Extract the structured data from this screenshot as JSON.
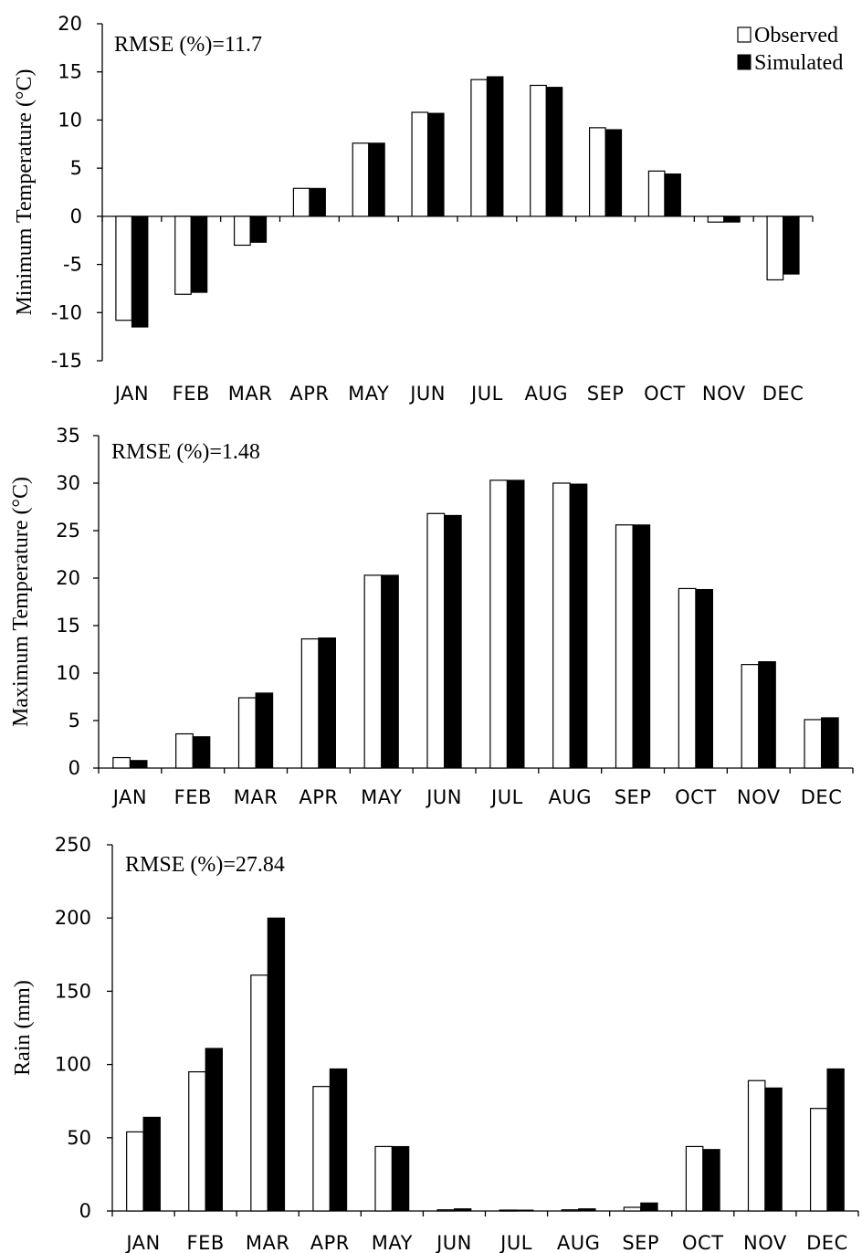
{
  "chart_data": [
    {
      "type": "bar",
      "ylabel": "Minimum Temperature (°C)",
      "annotation": "RMSE (%)=11.7",
      "ylim": [
        -15,
        20
      ],
      "yticks": [
        20,
        15,
        10,
        5,
        0,
        -5,
        -10,
        -15
      ],
      "categories": [
        "JAN",
        "FEB",
        "MAR",
        "APR",
        "MAY",
        "JUN",
        "JUL",
        "AUG",
        "SEP",
        "OCT",
        "NOV",
        "DEC"
      ],
      "series": [
        {
          "name": "Observed",
          "color": "#ffffff",
          "values": [
            -10.8,
            -8.1,
            -3.0,
            2.9,
            7.6,
            10.8,
            14.2,
            13.6,
            9.2,
            4.7,
            -0.6,
            -6.6
          ]
        },
        {
          "name": "Simulated",
          "color": "#000000",
          "values": [
            -11.5,
            -7.9,
            -2.7,
            2.9,
            7.6,
            10.7,
            14.5,
            13.4,
            9.0,
            4.4,
            -0.6,
            -6.0
          ]
        }
      ],
      "legend": {
        "position": "top-right",
        "items": [
          "Observed",
          "Simulated"
        ]
      },
      "grid": false
    },
    {
      "type": "bar",
      "ylabel": "Maximum Temperature (°C)",
      "annotation": "RMSE (%)=1.48",
      "ylim": [
        0,
        35
      ],
      "yticks": [
        35,
        30,
        25,
        20,
        15,
        10,
        5,
        0
      ],
      "categories": [
        "JAN",
        "FEB",
        "MAR",
        "APR",
        "MAY",
        "JUN",
        "JUL",
        "AUG",
        "SEP",
        "OCT",
        "NOV",
        "DEC"
      ],
      "series": [
        {
          "name": "Observed",
          "color": "#ffffff",
          "values": [
            1.1,
            3.6,
            7.4,
            13.6,
            20.3,
            26.8,
            30.3,
            30.0,
            25.6,
            18.9,
            10.9,
            5.1
          ]
        },
        {
          "name": "Simulated",
          "color": "#000000",
          "values": [
            0.8,
            3.3,
            7.9,
            13.7,
            20.3,
            26.6,
            30.3,
            29.9,
            25.6,
            18.8,
            11.2,
            5.3
          ]
        }
      ],
      "grid": false
    },
    {
      "type": "bar",
      "ylabel": "Rain (mm)",
      "annotation": "RMSE (%)=27.84",
      "ylim": [
        0,
        250
      ],
      "yticks": [
        250,
        200,
        150,
        100,
        50,
        0
      ],
      "categories": [
        "JAN",
        "FEB",
        "MAR",
        "APR",
        "MAY",
        "JUN",
        "JUL",
        "AUG",
        "SEP",
        "OCT",
        "NOV",
        "DEC"
      ],
      "series": [
        {
          "name": "Observed",
          "color": "#ffffff",
          "values": [
            54,
            95,
            161,
            85,
            44,
            0.8,
            0.6,
            0.8,
            2.5,
            44,
            89,
            70
          ]
        },
        {
          "name": "Simulated",
          "color": "#000000",
          "values": [
            64,
            111,
            200,
            97,
            44,
            1.5,
            0.6,
            1.5,
            5.5,
            42,
            84,
            97
          ]
        }
      ],
      "grid": false
    }
  ]
}
